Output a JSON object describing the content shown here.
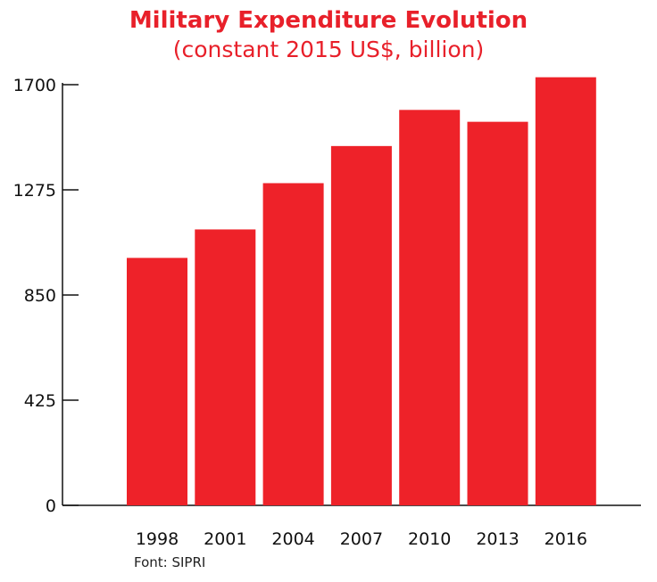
{
  "chart_data": {
    "type": "bar",
    "title": "Military Expenditure Evolution",
    "subtitle": "(constant 2015 US$, billion)",
    "categories": [
      "1998",
      "2001",
      "2004",
      "2007",
      "2010",
      "2013",
      "2016"
    ],
    "values": [
      1000,
      1115,
      1302,
      1452,
      1598,
      1550,
      1730
    ],
    "ylim": [
      0,
      1700
    ],
    "yticks": [
      0,
      425,
      850,
      1275,
      1700
    ],
    "xlabel": "",
    "ylabel": "",
    "grid": false,
    "legend": "none",
    "bar_color": "#ee2229"
  },
  "source": "Font: SIPRI"
}
